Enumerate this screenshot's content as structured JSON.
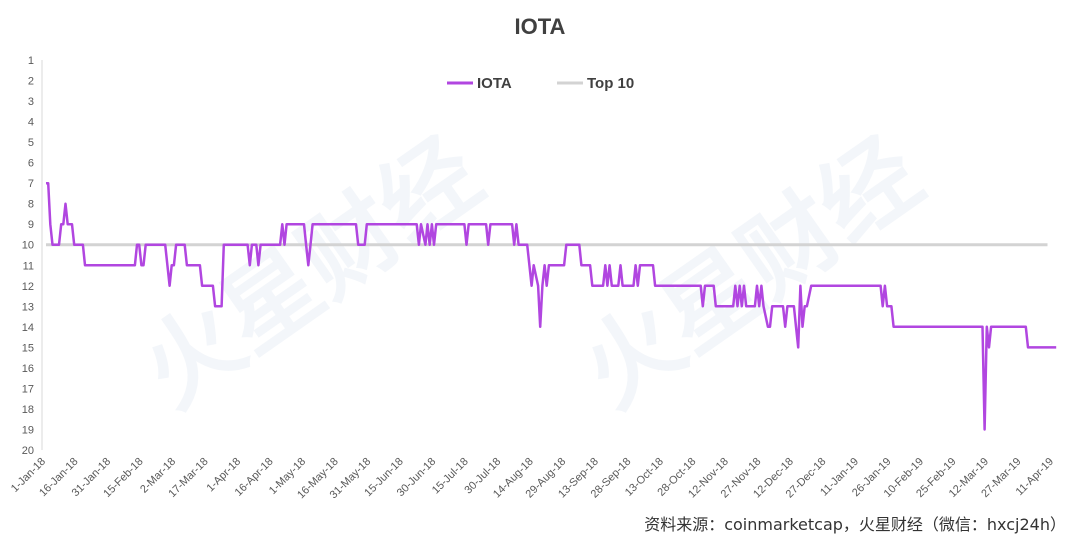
{
  "chart_data": {
    "type": "line",
    "title": "IOTA",
    "y_axis": {
      "reversed": true,
      "range": [
        1,
        20
      ],
      "tick_labels": [
        "1",
        "2",
        "3",
        "4",
        "5",
        "6",
        "7",
        "8",
        "9",
        "10",
        "11",
        "12",
        "13",
        "14",
        "15",
        "16",
        "17",
        "18",
        "19",
        "20"
      ]
    },
    "x_axis": {
      "range": [
        "2018-01-01",
        "2019-04-11"
      ],
      "tick_labels": [
        "1-Jan-18",
        "16-Jan-18",
        "31-Jan-18",
        "15-Feb-18",
        "2-Mar-18",
        "17-Mar-18",
        "1-Apr-18",
        "16-Apr-18",
        "1-May-18",
        "16-May-18",
        "31-May-18",
        "15-Jun-18",
        "30-Jun-18",
        "15-Jul-18",
        "30-Jul-18",
        "14-Aug-18",
        "29-Aug-18",
        "13-Sep-18",
        "28-Sep-18",
        "13-Oct-18",
        "28-Oct-18",
        "12-Nov-18",
        "27-Nov-18",
        "12-Dec-18",
        "27-Dec-18",
        "11-Jan-19",
        "26-Jan-19",
        "10-Feb-19",
        "25-Feb-19",
        "12-Mar-19",
        "27-Mar-19",
        "11-Apr-19"
      ]
    },
    "grid": false,
    "legend_position": "top",
    "series": [
      {
        "name": "IOTA",
        "color": "#b146e0",
        "points": [
          [
            "2018-01-01",
            7
          ],
          [
            "2018-01-02",
            7
          ],
          [
            "2018-01-03",
            9
          ],
          [
            "2018-01-04",
            10
          ],
          [
            "2018-01-07",
            10
          ],
          [
            "2018-01-08",
            9
          ],
          [
            "2018-01-09",
            9
          ],
          [
            "2018-01-10",
            8
          ],
          [
            "2018-01-11",
            9
          ],
          [
            "2018-01-13",
            9
          ],
          [
            "2018-01-14",
            10
          ],
          [
            "2018-01-18",
            10
          ],
          [
            "2018-01-19",
            11
          ],
          [
            "2018-02-11",
            11
          ],
          [
            "2018-02-12",
            10
          ],
          [
            "2018-02-13",
            10
          ],
          [
            "2018-02-14",
            11
          ],
          [
            "2018-02-15",
            11
          ],
          [
            "2018-02-16",
            10
          ],
          [
            "2018-02-25",
            10
          ],
          [
            "2018-02-26",
            11
          ],
          [
            "2018-02-27",
            12
          ],
          [
            "2018-02-28",
            11
          ],
          [
            "2018-03-01",
            11
          ],
          [
            "2018-03-02",
            10
          ],
          [
            "2018-03-06",
            10
          ],
          [
            "2018-03-07",
            11
          ],
          [
            "2018-03-13",
            11
          ],
          [
            "2018-03-14",
            12
          ],
          [
            "2018-03-19",
            12
          ],
          [
            "2018-03-20",
            13
          ],
          [
            "2018-03-23",
            13
          ],
          [
            "2018-03-24",
            10
          ],
          [
            "2018-04-04",
            10
          ],
          [
            "2018-04-05",
            11
          ],
          [
            "2018-04-06",
            10
          ],
          [
            "2018-04-08",
            10
          ],
          [
            "2018-04-09",
            11
          ],
          [
            "2018-04-10",
            10
          ],
          [
            "2018-04-19",
            10
          ],
          [
            "2018-04-20",
            9
          ],
          [
            "2018-04-21",
            10
          ],
          [
            "2018-04-22",
            9
          ],
          [
            "2018-04-30",
            9
          ],
          [
            "2018-05-01",
            10
          ],
          [
            "2018-05-02",
            11
          ],
          [
            "2018-05-03",
            10
          ],
          [
            "2018-05-04",
            9
          ],
          [
            "2018-05-24",
            9
          ],
          [
            "2018-05-25",
            10
          ],
          [
            "2018-05-28",
            10
          ],
          [
            "2018-05-29",
            9
          ],
          [
            "2018-06-21",
            9
          ],
          [
            "2018-06-22",
            10
          ],
          [
            "2018-06-23",
            9
          ],
          [
            "2018-06-25",
            10
          ],
          [
            "2018-06-26",
            9
          ],
          [
            "2018-06-27",
            10
          ],
          [
            "2018-06-28",
            9
          ],
          [
            "2018-06-29",
            10
          ],
          [
            "2018-06-30",
            9
          ],
          [
            "2018-07-13",
            9
          ],
          [
            "2018-07-14",
            10
          ],
          [
            "2018-07-15",
            9
          ],
          [
            "2018-07-23",
            9
          ],
          [
            "2018-07-24",
            10
          ],
          [
            "2018-07-25",
            9
          ],
          [
            "2018-08-04",
            9
          ],
          [
            "2018-08-05",
            10
          ],
          [
            "2018-08-06",
            9
          ],
          [
            "2018-08-07",
            10
          ],
          [
            "2018-08-11",
            10
          ],
          [
            "2018-08-12",
            11
          ],
          [
            "2018-08-13",
            12
          ],
          [
            "2018-08-14",
            11
          ],
          [
            "2018-08-16",
            12
          ],
          [
            "2018-08-17",
            14
          ],
          [
            "2018-08-18",
            12
          ],
          [
            "2018-08-19",
            11
          ],
          [
            "2018-08-20",
            12
          ],
          [
            "2018-08-21",
            11
          ],
          [
            "2018-08-28",
            11
          ],
          [
            "2018-08-29",
            10
          ],
          [
            "2018-09-04",
            10
          ],
          [
            "2018-09-05",
            11
          ],
          [
            "2018-09-09",
            11
          ],
          [
            "2018-09-10",
            12
          ],
          [
            "2018-09-15",
            12
          ],
          [
            "2018-09-16",
            11
          ],
          [
            "2018-09-17",
            12
          ],
          [
            "2018-09-18",
            11
          ],
          [
            "2018-09-19",
            12
          ],
          [
            "2018-09-22",
            12
          ],
          [
            "2018-09-23",
            11
          ],
          [
            "2018-09-24",
            12
          ],
          [
            "2018-09-29",
            12
          ],
          [
            "2018-09-30",
            11
          ],
          [
            "2018-10-01",
            12
          ],
          [
            "2018-10-02",
            11
          ],
          [
            "2018-10-08",
            11
          ],
          [
            "2018-10-09",
            12
          ],
          [
            "2018-10-30",
            12
          ],
          [
            "2018-10-31",
            13
          ],
          [
            "2018-11-01",
            12
          ],
          [
            "2018-11-05",
            12
          ],
          [
            "2018-11-06",
            13
          ],
          [
            "2018-11-14",
            13
          ],
          [
            "2018-11-15",
            12
          ],
          [
            "2018-11-16",
            13
          ],
          [
            "2018-11-17",
            12
          ],
          [
            "2018-11-18",
            13
          ],
          [
            "2018-11-19",
            12
          ],
          [
            "2018-11-20",
            13
          ],
          [
            "2018-11-24",
            13
          ],
          [
            "2018-11-25",
            12
          ],
          [
            "2018-11-26",
            13
          ],
          [
            "2018-11-27",
            12
          ],
          [
            "2018-11-28",
            13
          ],
          [
            "2018-11-30",
            14
          ],
          [
            "2018-12-01",
            14
          ],
          [
            "2018-12-02",
            13
          ],
          [
            "2018-12-07",
            13
          ],
          [
            "2018-12-08",
            14
          ],
          [
            "2018-12-09",
            13
          ],
          [
            "2018-12-12",
            13
          ],
          [
            "2018-12-13",
            14
          ],
          [
            "2018-12-14",
            15
          ],
          [
            "2018-12-15",
            12
          ],
          [
            "2018-12-16",
            14
          ],
          [
            "2018-12-17",
            13
          ],
          [
            "2018-12-18",
            13
          ],
          [
            "2018-12-20",
            12
          ],
          [
            "2019-01-21",
            12
          ],
          [
            "2019-01-22",
            13
          ],
          [
            "2019-01-23",
            12
          ],
          [
            "2019-01-24",
            13
          ],
          [
            "2019-01-26",
            13
          ],
          [
            "2019-01-27",
            14
          ],
          [
            "2019-03-09",
            14
          ],
          [
            "2019-03-10",
            19
          ],
          [
            "2019-03-11",
            14
          ],
          [
            "2019-03-12",
            15
          ],
          [
            "2019-03-13",
            14
          ],
          [
            "2019-03-29",
            14
          ],
          [
            "2019-03-30",
            15
          ],
          [
            "2019-04-12",
            15
          ]
        ]
      },
      {
        "name": "Top 10",
        "color": "#d3d3d3",
        "points": [
          [
            "2018-01-01",
            10
          ],
          [
            "2019-04-08",
            10
          ]
        ]
      }
    ]
  },
  "source_note": "资料来源：coinmarketcap，火星财经（微信：hxcj24h）",
  "watermark": "火星财经"
}
